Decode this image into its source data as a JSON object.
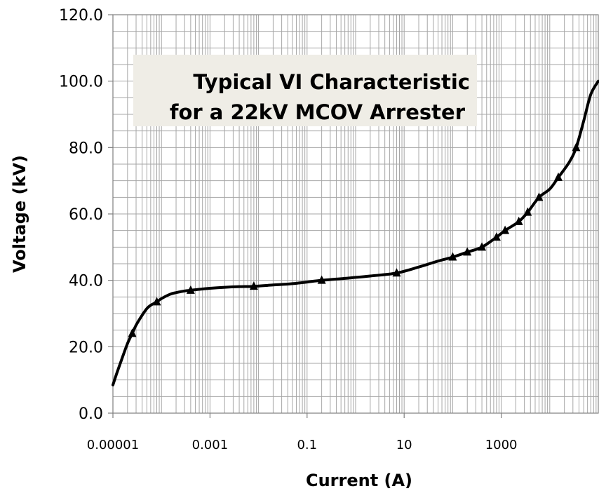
{
  "chart_data": {
    "type": "line",
    "title_lines": [
      "Typical VI Characteristic",
      "for a 22kV MCOV Arrester"
    ],
    "xlabel": "Current (A)",
    "ylabel": "Voltage (kV)",
    "x_scale": "log",
    "xlim": [
      1e-05,
      100000
    ],
    "ylim": [
      0,
      120
    ],
    "x_ticks": [
      "0.00001",
      "0.001",
      "0.1",
      "10",
      "1000"
    ],
    "y_ticks": [
      "0.0",
      "20.0",
      "40.0",
      "60.0",
      "80.0",
      "100.0",
      "120.0"
    ],
    "grid": true,
    "legend": "none",
    "series": [
      {
        "x": [
          2.5e-05,
          8e-05,
          0.0004,
          0.008,
          0.2,
          7,
          100,
          200,
          400,
          800,
          1200,
          2300,
          3500,
          6000,
          15000,
          35000
        ],
        "y": [
          24,
          33.5,
          37,
          38.2,
          40,
          42.2,
          47,
          48.5,
          50,
          53,
          55,
          57.7,
          60.5,
          65,
          71,
          80
        ]
      }
    ],
    "curve": {
      "x": [
        1e-05,
        1.2e-05,
        1.5e-05,
        2e-05,
        2.5e-05,
        3e-05,
        4e-05,
        5e-05,
        6e-05,
        8e-05,
        0.0001,
        0.00015,
        0.0002,
        0.0003,
        0.0004,
        0.0006,
        0.001,
        0.002,
        0.004,
        0.008,
        0.02,
        0.05,
        0.2,
        0.6,
        2,
        7,
        20,
        50,
        100,
        200,
        400,
        800,
        1200,
        2300,
        3500,
        6000,
        10000,
        15000,
        25000,
        35000,
        50000,
        70000,
        100000
      ],
      "y": [
        8.5,
        12,
        16,
        21,
        24,
        26.5,
        29.5,
        31.5,
        32.5,
        33.5,
        34.5,
        35.8,
        36.3,
        36.8,
        37,
        37.3,
        37.6,
        37.9,
        38.1,
        38.2,
        38.6,
        39,
        40,
        40.6,
        41.3,
        42.2,
        44,
        45.8,
        47,
        48.5,
        50,
        53,
        55,
        57.7,
        60.5,
        65,
        67.5,
        71,
        75.5,
        80,
        88,
        96,
        100
      ]
    }
  }
}
